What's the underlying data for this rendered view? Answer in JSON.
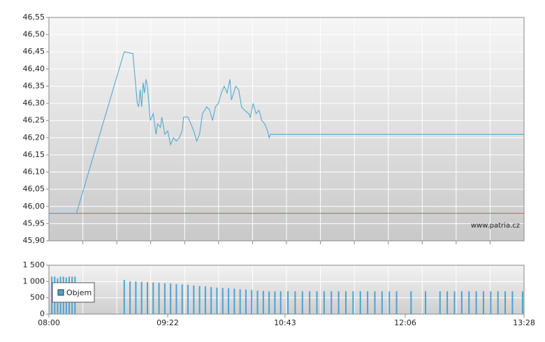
{
  "chart_data": [
    {
      "type": "line",
      "color": "#4aa3d3",
      "x": [
        480,
        499,
        532,
        538,
        541,
        542,
        543,
        544,
        545,
        546,
        547,
        548,
        550,
        552,
        554,
        555,
        557,
        558,
        560,
        562,
        564,
        566,
        568,
        570,
        572,
        573,
        576,
        578,
        580,
        582,
        584,
        586,
        589,
        591,
        593,
        595,
        597,
        599,
        601,
        603,
        605,
        606,
        609,
        611,
        613,
        615,
        618,
        619,
        621,
        623,
        625,
        627,
        629,
        631,
        632,
        633,
        808
      ],
      "values": [
        45.98,
        45.98,
        46.45,
        46.445,
        46.3,
        46.29,
        46.34,
        46.29,
        46.36,
        46.33,
        46.37,
        46.35,
        46.25,
        46.27,
        46.21,
        46.24,
        46.23,
        46.26,
        46.21,
        46.22,
        46.18,
        46.2,
        46.19,
        46.2,
        46.22,
        46.26,
        46.26,
        46.24,
        46.22,
        46.19,
        46.21,
        46.27,
        46.29,
        46.28,
        46.25,
        46.29,
        46.3,
        46.33,
        46.35,
        46.33,
        46.37,
        46.31,
        46.35,
        46.34,
        46.29,
        46.28,
        46.27,
        46.26,
        46.3,
        46.27,
        46.28,
        46.25,
        46.24,
        46.22,
        46.2,
        46.21,
        46.21
      ],
      "reference_line": 45.98,
      "reference_color": "#e05050",
      "watermark": "www.patria.cz",
      "xlim": [
        480,
        808
      ],
      "ylim": [
        45.9,
        46.55
      ],
      "yticks": [
        {
          "value": 45.9,
          "label": "45,90"
        },
        {
          "value": 45.95,
          "label": "45,95"
        },
        {
          "value": 46.0,
          "label": "46,00"
        },
        {
          "value": 46.05,
          "label": "46,05"
        },
        {
          "value": 46.1,
          "label": "46,10"
        },
        {
          "value": 46.15,
          "label": "46,15"
        },
        {
          "value": 46.2,
          "label": "46,20"
        },
        {
          "value": 46.25,
          "label": "46,25"
        },
        {
          "value": 46.3,
          "label": "46,30"
        },
        {
          "value": 46.35,
          "label": "46,35"
        },
        {
          "value": 46.4,
          "label": "46,40"
        },
        {
          "value": 46.45,
          "label": "46,45"
        },
        {
          "value": 46.5,
          "label": "46,50"
        },
        {
          "value": 46.55,
          "label": "46,55"
        }
      ],
      "grid": true
    },
    {
      "type": "bar",
      "x": [
        482,
        484,
        486,
        488,
        490,
        492,
        494,
        496,
        498,
        532,
        536,
        540,
        544,
        548,
        552,
        556,
        560,
        564,
        568,
        572,
        576,
        580,
        584,
        588,
        592,
        596,
        600,
        604,
        608,
        612,
        616,
        620,
        624,
        628,
        632,
        636,
        640,
        645,
        650,
        655,
        660,
        665,
        670,
        675,
        680,
        685,
        690,
        695,
        700,
        705,
        710,
        715,
        720,
        730,
        740,
        750,
        755,
        760,
        765,
        770,
        775,
        780,
        785,
        790,
        795,
        800,
        807
      ],
      "series": [
        {
          "name": "Objem",
          "color": "#4aa3d3",
          "values": [
            1150,
            1150,
            1100,
            1150,
            1150,
            1120,
            1150,
            1150,
            1150,
            1050,
            1000,
            1000,
            990,
            980,
            970,
            960,
            950,
            940,
            920,
            910,
            900,
            880,
            860,
            850,
            830,
            810,
            800,
            790,
            780,
            760,
            750,
            740,
            720,
            710,
            700,
            700,
            700,
            700,
            700,
            700,
            700,
            700,
            700,
            700,
            700,
            700,
            700,
            700,
            700,
            700,
            700,
            700,
            700,
            700,
            700,
            700,
            700,
            700,
            700,
            700,
            700,
            700,
            700,
            700,
            700,
            700,
            700
          ]
        }
      ],
      "xlim": [
        480,
        808
      ],
      "xticks": [
        {
          "value": 480,
          "label": "08:00"
        },
        {
          "value": 562,
          "label": "09:22"
        },
        {
          "value": 643,
          "label": "10:43"
        },
        {
          "value": 726,
          "label": "12:06"
        },
        {
          "value": 808,
          "label": "13:28"
        }
      ],
      "ylim": [
        0,
        1500
      ],
      "yticks": [
        0,
        500,
        {
          "value": 1000,
          "label": "1 000"
        },
        {
          "value": 1500,
          "label": "1 500"
        }
      ],
      "grid": true
    }
  ]
}
